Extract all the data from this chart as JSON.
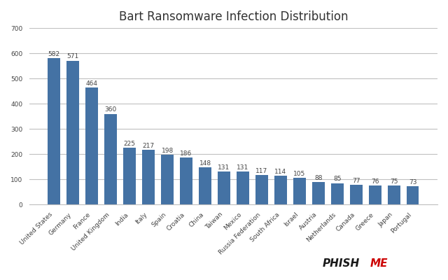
{
  "title": "Bart Ransomware Infection Distribution",
  "categories": [
    "United States",
    "Germany",
    "France",
    "United Kingdom",
    "India",
    "Italy",
    "Spain",
    "Croatia",
    "China",
    "Taiwan",
    "Mexico",
    "Russia Federation",
    "South Africa",
    "Israel",
    "Austria",
    "Netherlands",
    "Canada",
    "Greece",
    "Japan",
    "Portugal"
  ],
  "values": [
    582,
    571,
    464,
    360,
    225,
    217,
    198,
    186,
    148,
    131,
    131,
    117,
    114,
    105,
    88,
    85,
    77,
    76,
    75,
    73
  ],
  "bar_color": "#4472A4",
  "ylim": [
    0,
    700
  ],
  "yticks": [
    0,
    100,
    200,
    300,
    400,
    500,
    600,
    700
  ],
  "background_color": "#FFFFFF",
  "grid_color": "#C0C0C0",
  "value_fontsize": 6.5,
  "title_fontsize": 12,
  "tick_fontsize": 6.5,
  "phishme_color_ph": "#1A1A1A",
  "phishme_color_me": "#CC0000"
}
